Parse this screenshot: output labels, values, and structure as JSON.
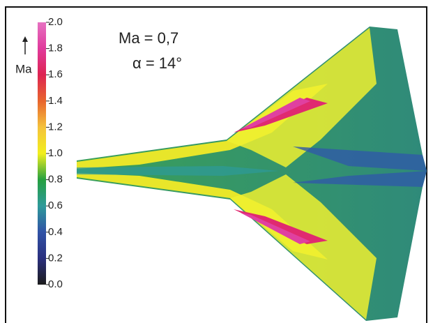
{
  "chart_data": {
    "type": "contour",
    "annotations": [
      "Ma = 0,7",
      "α = 14°"
    ],
    "colorbar_label": "Ma",
    "clim": [
      0,
      2
    ],
    "cticks": [
      {
        "value": 0,
        "label": "0.0"
      },
      {
        "value": 0.2,
        "label": "0.2"
      },
      {
        "value": 0.4,
        "label": "0.4"
      },
      {
        "value": 0.6,
        "label": "0.6"
      },
      {
        "value": 0.8,
        "label": "0.8"
      },
      {
        "value": 1,
        "label": "1.0"
      },
      {
        "value": 1.2,
        "label": "1.2"
      },
      {
        "value": 1.4,
        "label": "1.4"
      },
      {
        "value": 1.6,
        "label": "1.6"
      },
      {
        "value": 1.8,
        "label": "1.8"
      },
      {
        "value": 2,
        "label": "2.0"
      }
    ],
    "colormap": [
      "#1c1c1c",
      "#2a2f7e",
      "#3052a6",
      "#2e9a9a",
      "#25a040",
      "#f2ef1e",
      "#f4c23c",
      "#e8652e",
      "#de2452",
      "#e03a9c",
      "#e672c2"
    ]
  }
}
